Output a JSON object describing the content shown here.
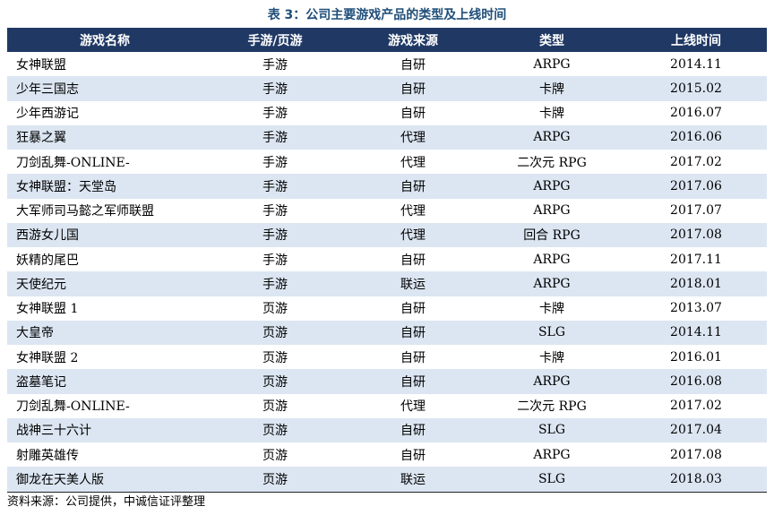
{
  "title": "表 3：公司主要游戏产品的类型及上线时间",
  "table": {
    "headers": [
      "游戏名称",
      "手游/页游",
      "游戏来源",
      "类型",
      "上线时间"
    ],
    "rows": [
      [
        "女神联盟",
        "手游",
        "自研",
        "ARPG",
        "2014.11"
      ],
      [
        "少年三国志",
        "手游",
        "自研",
        "卡牌",
        "2015.02"
      ],
      [
        "少年西游记",
        "手游",
        "自研",
        "卡牌",
        "2016.07"
      ],
      [
        "狂暴之翼",
        "手游",
        "代理",
        "ARPG",
        "2016.06"
      ],
      [
        "刀剑乱舞-ONLINE-",
        "手游",
        "代理",
        "二次元 RPG",
        "2017.02"
      ],
      [
        "女神联盟：天堂岛",
        "手游",
        "自研",
        "ARPG",
        "2017.06"
      ],
      [
        "大军师司马懿之军师联盟",
        "手游",
        "代理",
        "ARPG",
        "2017.07"
      ],
      [
        "西游女儿国",
        "手游",
        "代理",
        "回合 RPG",
        "2017.08"
      ],
      [
        "妖精的尾巴",
        "手游",
        "自研",
        "ARPG",
        "2017.11"
      ],
      [
        "天使纪元",
        "手游",
        "联运",
        "ARPG",
        "2018.01"
      ],
      [
        "女神联盟 1",
        "页游",
        "自研",
        "卡牌",
        "2013.07"
      ],
      [
        "大皇帝",
        "页游",
        "自研",
        "SLG",
        "2014.11"
      ],
      [
        "女神联盟 2",
        "页游",
        "自研",
        "卡牌",
        "2016.01"
      ],
      [
        "盗墓笔记",
        "页游",
        "自研",
        "ARPG",
        "2016.08"
      ],
      [
        "刀剑乱舞-ONLINE-",
        "页游",
        "代理",
        "二次元 RPG",
        "2017.02"
      ],
      [
        "战神三十六计",
        "页游",
        "自研",
        "SLG",
        "2017.04"
      ],
      [
        "射雕英雄传",
        "页游",
        "自研",
        "ARPG",
        "2017.08"
      ],
      [
        "御龙在天美人版",
        "页游",
        "联运",
        "SLG",
        "2018.03"
      ]
    ]
  },
  "source": "资料来源：公司提供，中诚信证评整理",
  "colors": {
    "title": "#1f4e79",
    "header_bg": "#1f3864",
    "stripe_bg": "#dce6f2"
  }
}
